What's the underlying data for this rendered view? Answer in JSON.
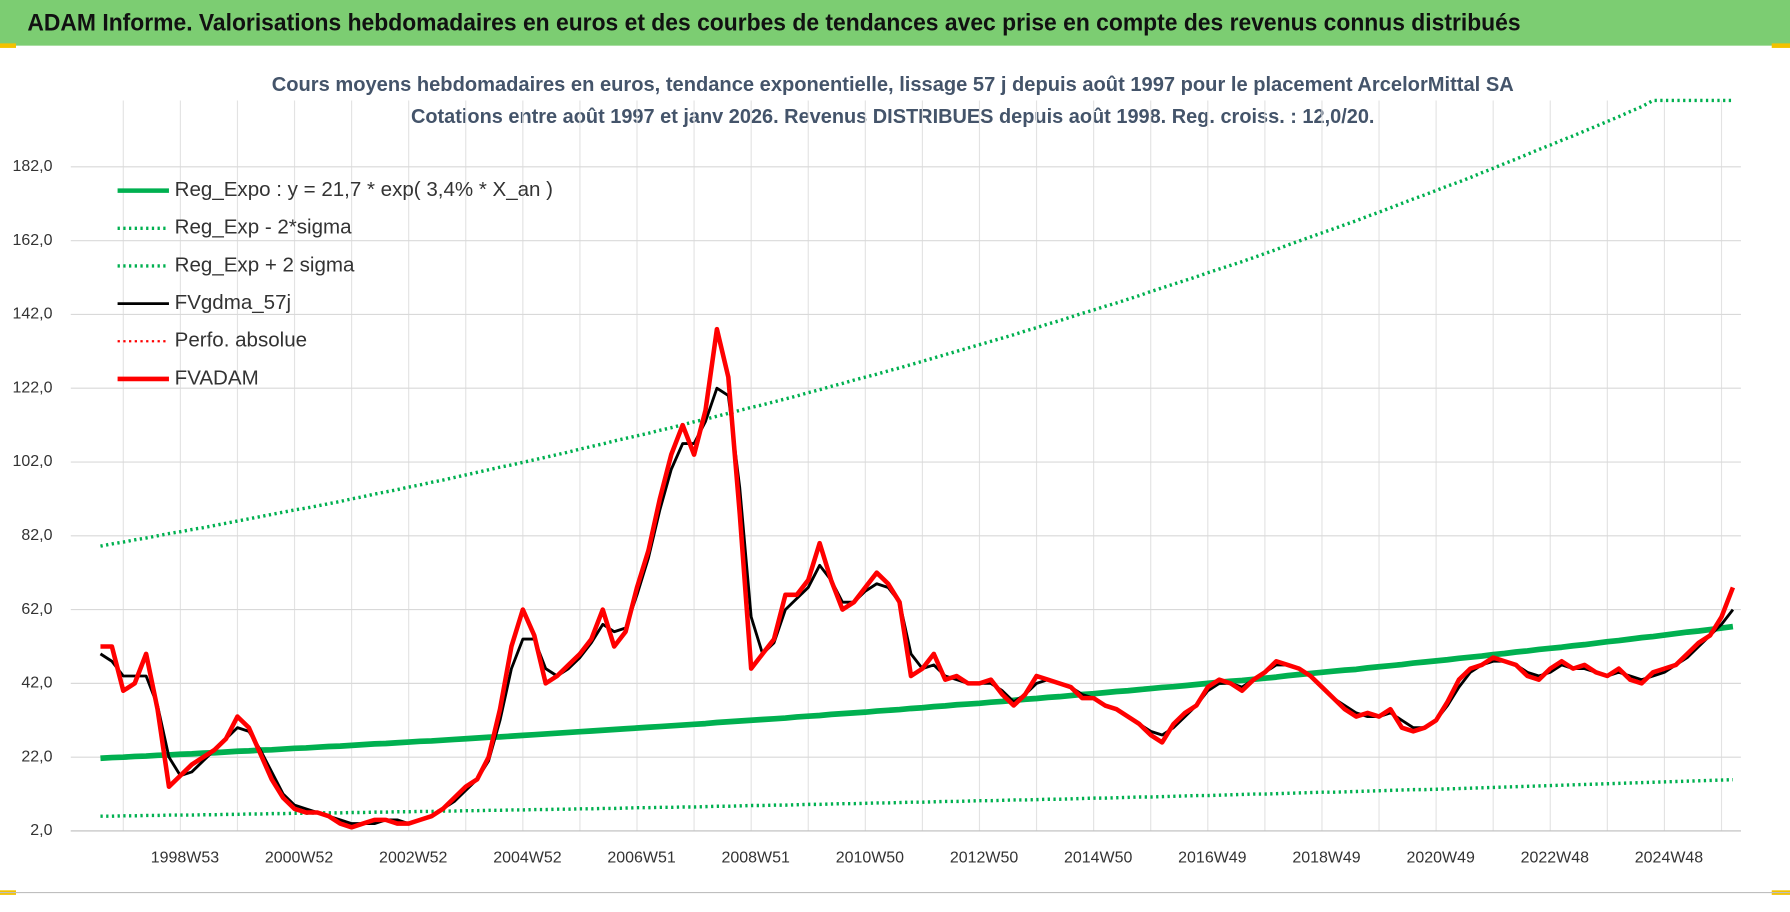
{
  "header": "ADAM Informe. Valorisations hebdomadaires en euros et des courbes de tendances avec prise en compte des revenus connus distribués",
  "chart_data": {
    "type": "line",
    "title": "Cours moyens hebdomadaires en euros, tendance exponentielle, lissage 57 j depuis août 1997 pour le placement ArcelorMittal SA",
    "subtitle": "Cotations entre août 1997 et janv 2026.  Revenus DISTRIBUES depuis août 1998. Reg. croiss. : 12,0/20.",
    "categories": [
      null,
      null,
      null,
      null,
      null,
      null,
      null,
      "1998W53",
      null,
      null,
      null,
      null,
      null,
      null,
      null,
      null,
      null,
      "2000W52",
      null,
      null,
      null,
      null,
      null,
      null,
      null,
      null,
      null,
      "2002W52",
      null,
      null,
      null,
      null,
      null,
      null,
      null,
      null,
      null,
      "2004W52",
      null,
      null,
      null,
      null,
      null,
      null,
      null,
      null,
      null,
      "2006W51",
      null,
      null,
      null,
      null,
      null,
      null,
      null,
      null,
      null,
      "2008W51",
      null,
      null,
      null,
      null,
      null,
      null,
      null,
      null,
      null,
      "2010W50",
      null,
      null,
      null,
      null,
      null,
      null,
      null,
      null,
      null,
      "2012W50",
      null,
      null,
      null,
      null,
      null,
      null,
      null,
      null,
      null,
      "2014W50",
      null,
      null,
      null,
      null,
      null,
      null,
      null,
      null,
      null,
      "2016W49",
      null,
      null,
      null,
      null,
      null,
      null,
      null,
      null,
      null,
      "2018W49",
      null,
      null,
      null,
      null,
      null,
      null,
      null,
      null,
      null,
      "2020W49",
      null,
      null,
      null,
      null,
      null,
      null,
      null,
      null,
      null,
      "2022W48",
      null,
      null,
      null,
      null,
      null,
      null,
      null,
      null,
      null,
      "2024W48",
      null,
      null,
      null,
      null,
      null,
      null
    ],
    "ylim": [
      2,
      200
    ],
    "yticks": [
      {
        "value": 2,
        "label": "2,0"
      },
      {
        "value": 22,
        "label": "22,0"
      },
      {
        "value": 42,
        "label": "42,0"
      },
      {
        "value": 62,
        "label": "62,0"
      },
      {
        "value": 82,
        "label": "82,0"
      },
      {
        "value": 102,
        "label": "102,0"
      },
      {
        "value": 122,
        "label": "122,0"
      },
      {
        "value": 142,
        "label": "142,0"
      },
      {
        "value": 162,
        "label": "162,0"
      },
      {
        "value": 182,
        "label": "182,0"
      }
    ],
    "grid": true,
    "legend": "upper left",
    "series": [
      {
        "name": "Reg_Expo : y = 21,7 * exp( 3,4% *  X_an )",
        "color": "#00b050",
        "style": "solid",
        "width": 5,
        "values": [
          21.7,
          21.9,
          22.0,
          22.2,
          22.3,
          22.5,
          22.6,
          22.8,
          22.9,
          23.1,
          23.2,
          23.4,
          23.6,
          23.7,
          23.9,
          24.0,
          24.2,
          24.4,
          24.5,
          24.7,
          24.9,
          25.0,
          25.2,
          25.4,
          25.6,
          25.7,
          25.9,
          26.1,
          26.3,
          26.4,
          26.6,
          26.8,
          27.0,
          27.2,
          27.4,
          27.5,
          27.7,
          27.9,
          28.1,
          28.3,
          28.5,
          28.7,
          28.9,
          29.1,
          29.3,
          29.5,
          29.7,
          29.9,
          30.1,
          30.3,
          30.5,
          30.7,
          30.9,
          31.1,
          31.4,
          31.6,
          31.8,
          32.0,
          32.2,
          32.4,
          32.6,
          32.9,
          33.1,
          33.3,
          33.6,
          33.8,
          34.0,
          34.2,
          34.5,
          34.7,
          34.9,
          35.2,
          35.4,
          35.7,
          35.9,
          36.2,
          36.4,
          36.6,
          36.9,
          37.1,
          37.4,
          37.7,
          37.9,
          38.2,
          38.4,
          38.7,
          39.0,
          39.2,
          39.5,
          39.8,
          40.0,
          40.3,
          40.6,
          40.9,
          41.1,
          41.4,
          41.7,
          42.0,
          42.3,
          42.6,
          42.8,
          43.1,
          43.4,
          43.7,
          44.1,
          44.4,
          44.7,
          45.0,
          45.3,
          45.6,
          45.8,
          46.2,
          46.5,
          46.8,
          47.1,
          47.5,
          47.8,
          48.1,
          48.4,
          48.8,
          49.1,
          49.4,
          49.8,
          50.1,
          50.5,
          50.8,
          51.2,
          51.5,
          51.8,
          52.2,
          52.5,
          52.9,
          53.3,
          53.6,
          54.0,
          54.4,
          54.7,
          55.1,
          55.5,
          55.9,
          56.2,
          56.6,
          57.0,
          57.4
        ]
      },
      {
        "name": "Reg_Exp - 2*sigma",
        "color": "#00b050",
        "style": "dotted",
        "width": 3,
        "values": [
          6.0,
          6.0,
          6.1,
          6.1,
          6.2,
          6.2,
          6.3,
          6.3,
          6.3,
          6.4,
          6.4,
          6.5,
          6.5,
          6.6,
          6.6,
          6.7,
          6.7,
          6.8,
          6.8,
          6.9,
          6.9,
          6.9,
          7.0,
          7.0,
          7.1,
          7.1,
          7.2,
          7.2,
          7.3,
          7.3,
          7.4,
          7.4,
          7.5,
          7.5,
          7.6,
          7.6,
          7.7,
          7.7,
          7.8,
          7.8,
          7.9,
          7.9,
          8.0,
          8.0,
          8.1,
          8.1,
          8.2,
          8.3,
          8.3,
          8.4,
          8.4,
          8.5,
          8.5,
          8.6,
          8.7,
          8.7,
          8.8,
          8.9,
          8.9,
          9.0,
          9.0,
          9.1,
          9.2,
          9.2,
          9.3,
          9.4,
          9.4,
          9.5,
          9.6,
          9.6,
          9.7,
          9.8,
          9.8,
          9.9,
          10.0,
          10.0,
          10.1,
          10.2,
          10.2,
          10.3,
          10.4,
          10.4,
          10.5,
          10.6,
          10.6,
          10.7,
          10.8,
          10.9,
          10.9,
          11.0,
          11.1,
          11.2,
          11.2,
          11.3,
          11.4,
          11.5,
          11.6,
          11.6,
          11.7,
          11.8,
          11.9,
          12.0,
          12.0,
          12.1,
          12.2,
          12.3,
          12.4,
          12.5,
          12.5,
          12.6,
          12.7,
          12.8,
          12.9,
          13.0,
          13.1,
          13.2,
          13.2,
          13.3,
          13.4,
          13.5,
          13.6,
          13.7,
          13.8,
          13.9,
          14.0,
          14.1,
          14.2,
          14.3,
          14.4,
          14.5,
          14.6,
          14.7,
          14.8,
          14.9,
          15.0,
          15.1,
          15.2,
          15.3,
          15.4,
          15.5,
          15.6,
          15.7,
          15.8,
          15.9
        ]
      },
      {
        "name": "Reg_Exp + 2 sigma",
        "color": "#00b050",
        "style": "dotted",
        "width": 3,
        "values": [
          79.2,
          79.8,
          80.3,
          80.9,
          81.4,
          82.0,
          82.6,
          83.1,
          83.7,
          84.2,
          84.8,
          85.4,
          86.0,
          86.6,
          87.2,
          87.8,
          88.4,
          89.0,
          89.5,
          90.1,
          90.7,
          91.3,
          92.0,
          92.6,
          93.3,
          93.9,
          94.5,
          95.2,
          95.8,
          96.5,
          97.1,
          97.8,
          98.5,
          99.2,
          99.9,
          100.6,
          101.2,
          101.9,
          102.6,
          103.3,
          104.0,
          104.7,
          105.5,
          106.2,
          106.9,
          107.7,
          108.4,
          109.1,
          109.8,
          110.6,
          111.3,
          112.1,
          112.9,
          113.6,
          114.4,
          115.2,
          116.0,
          116.8,
          117.5,
          118.3,
          119.1,
          119.9,
          120.8,
          121.6,
          122.5,
          123.3,
          124.2,
          125.0,
          125.8,
          126.7,
          127.5,
          128.4,
          129.3,
          130.2,
          131.1,
          132.0,
          132.9,
          133.8,
          134.7,
          135.6,
          136.5,
          137.5,
          138.4,
          139.4,
          140.3,
          141.3,
          142.3,
          143.2,
          144.2,
          145.1,
          146.1,
          147.1,
          148.2,
          149.2,
          150.2,
          151.2,
          152.2,
          153.3,
          154.3,
          155.3,
          156.3,
          157.4,
          158.5,
          159.6,
          160.8,
          161.9,
          163.0,
          164.1,
          165.2,
          166.3,
          167.4,
          168.6,
          169.7,
          170.9,
          172.1,
          173.3,
          174.4,
          175.6,
          176.8,
          177.9,
          179.1,
          180.4,
          181.6,
          182.9,
          184.1,
          185.4,
          186.7,
          187.9,
          189.2,
          190.4,
          191.7,
          193.0,
          194.3,
          195.6,
          197.0,
          198.3,
          200,
          200,
          200,
          200,
          200,
          200,
          200,
          200
        ]
      },
      {
        "name": "FVgdma_57j",
        "color": "#000000",
        "style": "solid",
        "width": 2.5,
        "values": [
          50,
          48,
          44,
          44,
          44,
          36,
          22,
          17,
          18,
          21,
          24,
          27,
          30,
          29,
          24,
          18,
          12,
          9,
          8,
          7,
          6,
          5,
          4,
          4,
          4,
          5,
          5,
          4,
          5,
          6,
          8,
          10,
          13,
          16,
          21,
          32,
          46,
          54,
          54,
          46,
          44,
          46,
          49,
          53,
          58,
          56,
          57,
          66,
          76,
          89,
          100,
          107,
          107,
          113,
          122,
          120,
          95,
          60,
          50,
          53,
          62,
          65,
          68,
          74,
          70,
          64,
          64,
          67,
          69,
          68,
          64,
          50,
          46,
          47,
          44,
          43,
          42,
          42,
          42,
          40,
          37,
          39,
          42,
          43,
          42,
          41,
          39,
          38,
          36,
          35,
          33,
          31,
          29,
          28,
          30,
          33,
          36,
          40,
          42,
          42,
          41,
          43,
          45,
          47,
          47,
          46,
          44,
          41,
          38,
          36,
          34,
          33,
          33,
          34,
          32,
          30,
          30,
          32,
          36,
          41,
          45,
          47,
          48,
          48,
          47,
          45,
          44,
          45,
          47,
          46,
          46,
          45,
          44,
          45,
          44,
          43,
          44,
          45,
          47,
          49,
          52,
          55,
          58,
          62
        ]
      },
      {
        "name": "Perfo. absolue",
        "color": "#ff0000",
        "style": "dotted",
        "width": 2
      },
      {
        "name": "FVADAM",
        "color": "#ff0000",
        "style": "solid",
        "width": 4,
        "values": [
          52,
          52,
          40,
          42,
          50,
          35,
          14,
          17,
          20,
          22,
          24,
          27,
          33,
          30,
          23,
          16,
          11,
          8,
          7,
          7,
          6,
          4,
          3,
          4,
          5,
          5,
          4,
          4,
          5,
          6,
          8,
          11,
          14,
          16,
          22,
          35,
          52,
          62,
          55,
          42,
          44,
          47,
          50,
          54,
          62,
          52,
          56,
          68,
          78,
          92,
          104,
          112,
          104,
          116,
          138,
          125,
          88,
          46,
          50,
          54,
          66,
          66,
          70,
          80,
          70,
          62,
          64,
          68,
          72,
          69,
          64,
          44,
          46,
          50,
          43,
          44,
          42,
          42,
          43,
          39,
          36,
          39,
          44,
          43,
          42,
          41,
          38,
          38,
          36,
          35,
          33,
          31,
          28,
          26,
          31,
          34,
          36,
          41,
          43,
          42,
          40,
          43,
          45,
          48,
          47,
          46,
          44,
          41,
          38,
          35,
          33,
          34,
          33,
          35,
          30,
          29,
          30,
          32,
          37,
          43,
          46,
          47,
          49,
          48,
          47,
          44,
          43,
          46,
          48,
          46,
          47,
          45,
          44,
          46,
          43,
          42,
          45,
          46,
          47,
          50,
          53,
          55,
          60,
          68
        ]
      }
    ]
  }
}
